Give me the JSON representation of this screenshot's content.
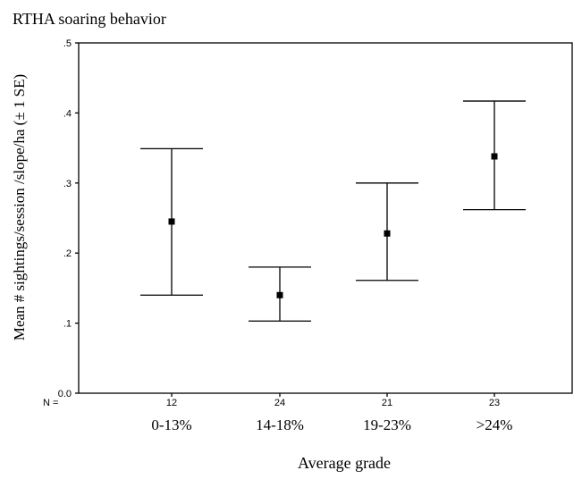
{
  "chart_data": {
    "type": "errorbar",
    "title": "RTHA soaring behavior",
    "xlabel": "Average grade",
    "ylabel": "Mean # sightings/session /slope/ha  (± 1 SE)",
    "ylim": [
      0,
      0.5
    ],
    "yticks": [
      {
        "value": 0.0,
        "label": "0.0"
      },
      {
        "value": 0.1,
        "label": ".1"
      },
      {
        "value": 0.2,
        "label": ".2"
      },
      {
        "value": 0.3,
        "label": ".3"
      },
      {
        "value": 0.4,
        "label": ".4"
      },
      {
        "value": 0.5,
        "label": ".5"
      }
    ],
    "n_label": "N =",
    "categories": [
      "0-13%",
      "14-18%",
      "19-23%",
      ">24%"
    ],
    "n": [
      "12",
      "24",
      "21",
      "23"
    ],
    "means": [
      0.245,
      0.14,
      0.228,
      0.338
    ],
    "lower": [
      0.14,
      0.103,
      0.161,
      0.262
    ],
    "upper": [
      0.349,
      0.18,
      0.3,
      0.417
    ],
    "grid": false,
    "legend": "none",
    "colors": {
      "line": "#000000",
      "marker": "#000000"
    }
  }
}
